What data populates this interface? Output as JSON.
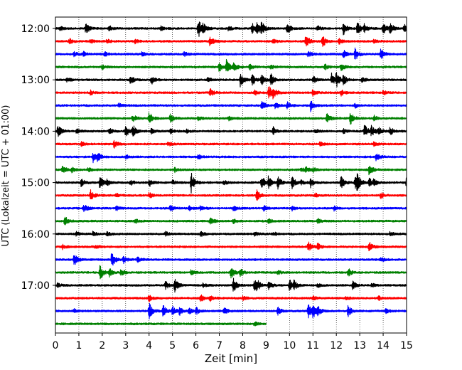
{
  "chart_data": {
    "type": "line",
    "xlabel": "Zeit  [min]",
    "ylabel": "UTC (Lokalzeit = UTC + 01:00)",
    "xlim": [
      0,
      15
    ],
    "x_ticks": [
      "0",
      "1",
      "2",
      "3",
      "4",
      "5",
      "6",
      "7",
      "8",
      "9",
      "10",
      "11",
      "12",
      "13",
      "14",
      "15"
    ],
    "y_ticks": [
      "12:00",
      "13:00",
      "14:00",
      "15:00",
      "16:00",
      "17:00"
    ],
    "trace_interval_min": 15,
    "trace_colors": [
      "#000000",
      "#ff0000",
      "#0000ff",
      "#008000"
    ],
    "vertical_grid": true,
    "grid_style": "dotted",
    "last_trace_end_min": 9,
    "traces": [
      {
        "start": "12:00",
        "events": [
          [
            0.2,
            3
          ],
          [
            1.3,
            8
          ],
          [
            2.3,
            4
          ],
          [
            4.5,
            3
          ],
          [
            6.1,
            14
          ],
          [
            6.3,
            6
          ],
          [
            7.4,
            4
          ],
          [
            8.4,
            7
          ],
          [
            8.6,
            9
          ],
          [
            8.8,
            8
          ],
          [
            9.9,
            8
          ],
          [
            11.2,
            4
          ],
          [
            12.3,
            9
          ],
          [
            12.9,
            10
          ],
          [
            13.2,
            6
          ],
          [
            14.0,
            8
          ],
          [
            14.3,
            8
          ],
          [
            14.9,
            6
          ]
        ]
      },
      {
        "start": "12:15",
        "events": [
          [
            0.6,
            4
          ],
          [
            1.5,
            3
          ],
          [
            2.2,
            3
          ],
          [
            3.4,
            3
          ],
          [
            6.6,
            8
          ],
          [
            9.3,
            3
          ],
          [
            10.7,
            10
          ],
          [
            11.4,
            9
          ],
          [
            12.1,
            4
          ],
          [
            13.6,
            3
          ]
        ]
      },
      {
        "start": "12:30",
        "events": [
          [
            0.8,
            3
          ],
          [
            1.2,
            3
          ],
          [
            2.1,
            3
          ],
          [
            3.7,
            3
          ],
          [
            5.5,
            3
          ],
          [
            10.8,
            4
          ],
          [
            12.3,
            6
          ],
          [
            12.8,
            9
          ],
          [
            13.9,
            7
          ]
        ]
      },
      {
        "start": "12:45",
        "events": [
          [
            2.0,
            3
          ],
          [
            7.0,
            7
          ],
          [
            7.3,
            9
          ],
          [
            7.6,
            7
          ],
          [
            8.3,
            4
          ],
          [
            9.2,
            3
          ],
          [
            11.5,
            4
          ],
          [
            12.2,
            6
          ]
        ]
      },
      {
        "start": "13:00",
        "events": [
          [
            0.5,
            3
          ],
          [
            3.2,
            6
          ],
          [
            4.1,
            6
          ],
          [
            6.5,
            4
          ],
          [
            7.9,
            10
          ],
          [
            8.4,
            8
          ],
          [
            8.8,
            8
          ],
          [
            9.2,
            8
          ],
          [
            11.0,
            6
          ],
          [
            11.8,
            9
          ],
          [
            12.0,
            10
          ],
          [
            12.3,
            6
          ],
          [
            13.1,
            4
          ]
        ]
      },
      {
        "start": "13:15",
        "events": [
          [
            1.5,
            3
          ],
          [
            6.6,
            6
          ],
          [
            8.5,
            4
          ],
          [
            9.1,
            11
          ],
          [
            9.3,
            8
          ],
          [
            11.0,
            6
          ],
          [
            12.2,
            4
          ],
          [
            14.0,
            3
          ]
        ]
      },
      {
        "start": "13:30",
        "events": [
          [
            2.7,
            3
          ],
          [
            8.8,
            8
          ],
          [
            9.4,
            7
          ],
          [
            9.9,
            5
          ],
          [
            10.9,
            8
          ],
          [
            12.8,
            3
          ]
        ]
      },
      {
        "start": "13:45",
        "events": [
          [
            3.3,
            6
          ],
          [
            4.0,
            4
          ],
          [
            4.0,
            6
          ],
          [
            4.9,
            6
          ],
          [
            6.1,
            3
          ],
          [
            7.4,
            3
          ],
          [
            11.6,
            7
          ],
          [
            12.6,
            9
          ],
          [
            13.6,
            4
          ]
        ]
      },
      {
        "start": "14:00",
        "events": [
          [
            0.1,
            10
          ],
          [
            0.9,
            3
          ],
          [
            2.3,
            4
          ],
          [
            3.0,
            8
          ],
          [
            3.3,
            9
          ],
          [
            4.1,
            4
          ],
          [
            4.9,
            3
          ],
          [
            5.6,
            3
          ],
          [
            9.3,
            6
          ],
          [
            11.1,
            3
          ],
          [
            12.3,
            3
          ],
          [
            13.2,
            10
          ],
          [
            13.5,
            8
          ],
          [
            13.8,
            5
          ],
          [
            14.3,
            6
          ]
        ]
      },
      {
        "start": "14:15",
        "events": [
          [
            1.1,
            3
          ],
          [
            2.5,
            6
          ],
          [
            4.8,
            3
          ],
          [
            11.3,
            3
          ],
          [
            13.6,
            3
          ]
        ]
      },
      {
        "start": "14:30",
        "events": [
          [
            1.6,
            8
          ],
          [
            1.8,
            6
          ],
          [
            3.0,
            3
          ],
          [
            6.1,
            3
          ],
          [
            13.7,
            6
          ]
        ]
      },
      {
        "start": "14:45",
        "events": [
          [
            0.3,
            6
          ],
          [
            0.7,
            3
          ],
          [
            1.4,
            3
          ],
          [
            5.1,
            3
          ],
          [
            10.5,
            3
          ],
          [
            10.7,
            3
          ],
          [
            11.0,
            3
          ],
          [
            13.4,
            8
          ]
        ]
      },
      {
        "start": "15:00",
        "events": [
          [
            1.1,
            6
          ],
          [
            1.9,
            9
          ],
          [
            2.2,
            4
          ],
          [
            3.2,
            4
          ],
          [
            4.0,
            6
          ],
          [
            5.0,
            3
          ],
          [
            5.8,
            14
          ],
          [
            7.2,
            3
          ],
          [
            8.8,
            11
          ],
          [
            9.1,
            9
          ],
          [
            9.5,
            8
          ],
          [
            10.1,
            9
          ],
          [
            10.5,
            3
          ],
          [
            10.9,
            6
          ],
          [
            12.2,
            10
          ],
          [
            12.8,
            9
          ],
          [
            12.9,
            10
          ],
          [
            13.4,
            6
          ],
          [
            13.6,
            4
          ],
          [
            15.0,
            9
          ]
        ]
      },
      {
        "start": "15:15",
        "events": [
          [
            1.5,
            8
          ],
          [
            2.6,
            3
          ],
          [
            4.0,
            4
          ],
          [
            8.6,
            8
          ],
          [
            11.1,
            3
          ],
          [
            13.9,
            4
          ]
        ]
      },
      {
        "start": "15:30",
        "events": [
          [
            1.2,
            6
          ],
          [
            2.6,
            3
          ],
          [
            4.9,
            5
          ],
          [
            5.7,
            4
          ],
          [
            6.2,
            4
          ],
          [
            7.6,
            4
          ],
          [
            8.9,
            4
          ],
          [
            10.1,
            3
          ],
          [
            11.9,
            3
          ]
        ]
      },
      {
        "start": "15:45",
        "events": [
          [
            0.4,
            7
          ],
          [
            3.4,
            3
          ],
          [
            6.6,
            6
          ],
          [
            7.6,
            3
          ],
          [
            9.1,
            3
          ],
          [
            11.2,
            3
          ]
        ]
      },
      {
        "start": "16:00",
        "events": [
          [
            0.9,
            3
          ],
          [
            1.6,
            3
          ],
          [
            2.2,
            3
          ],
          [
            4.7,
            3
          ],
          [
            6.2,
            4
          ],
          [
            8.5,
            3
          ],
          [
            9.3,
            3
          ],
          [
            14.3,
            3
          ]
        ]
      },
      {
        "start": "16:15",
        "events": [
          [
            0.3,
            3
          ],
          [
            1.7,
            3
          ],
          [
            10.8,
            7
          ],
          [
            11.2,
            5
          ],
          [
            13.4,
            8
          ]
        ]
      },
      {
        "start": "16:30",
        "events": [
          [
            0.8,
            10
          ],
          [
            2.4,
            11
          ],
          [
            2.9,
            5
          ],
          [
            3.5,
            4
          ],
          [
            13.9,
            3
          ]
        ]
      },
      {
        "start": "16:45",
        "events": [
          [
            1.9,
            11
          ],
          [
            2.3,
            6
          ],
          [
            2.8,
            5
          ],
          [
            5.8,
            4
          ],
          [
            7.5,
            9
          ],
          [
            7.9,
            5
          ],
          [
            9.5,
            3
          ],
          [
            12.5,
            6
          ]
        ]
      },
      {
        "start": "17:00",
        "events": [
          [
            0.1,
            3
          ],
          [
            4.7,
            6
          ],
          [
            5.1,
            10
          ],
          [
            6.3,
            3
          ],
          [
            7.6,
            10
          ],
          [
            8.5,
            9
          ],
          [
            8.6,
            6
          ],
          [
            9.1,
            6
          ],
          [
            10.0,
            8
          ],
          [
            10.2,
            7
          ],
          [
            11.2,
            3
          ],
          [
            12.7,
            6
          ],
          [
            13.5,
            3
          ]
        ]
      },
      {
        "start": "17:15",
        "events": [
          [
            4.0,
            6
          ],
          [
            6.2,
            5
          ],
          [
            6.6,
            4
          ],
          [
            8.0,
            3
          ],
          [
            11.0,
            3
          ],
          [
            12.4,
            3
          ],
          [
            13.8,
            3
          ]
        ]
      },
      {
        "start": "17:30",
        "events": [
          [
            0.8,
            3
          ],
          [
            4.0,
            12
          ],
          [
            4.6,
            8
          ],
          [
            5.0,
            7
          ],
          [
            5.3,
            5
          ],
          [
            5.7,
            5
          ],
          [
            6.0,
            5
          ],
          [
            7.2,
            5
          ],
          [
            9.5,
            6
          ],
          [
            10.8,
            10
          ],
          [
            11.0,
            9
          ],
          [
            11.2,
            6
          ],
          [
            12.5,
            8
          ],
          [
            14.1,
            3
          ]
        ]
      },
      {
        "start": "17:45",
        "events": [
          [
            8.5,
            3
          ]
        ]
      }
    ]
  }
}
